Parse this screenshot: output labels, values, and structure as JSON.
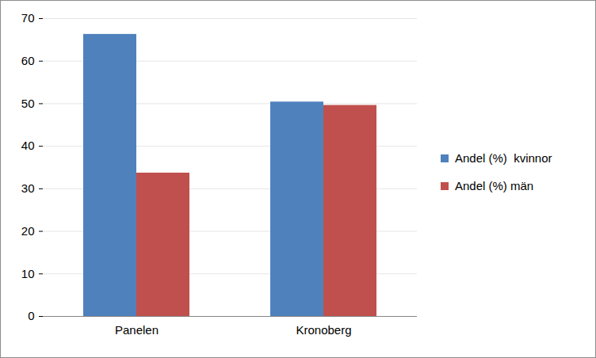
{
  "chart_data": {
    "type": "bar",
    "categories": [
      "Panelen",
      "Kronoberg"
    ],
    "series": [
      {
        "name": "Andel (%)  kvinnor",
        "color": "#4f81bd",
        "values": [
          66.3,
          50.4
        ]
      },
      {
        "name": "Andel (%) män",
        "color": "#c0504d",
        "values": [
          33.7,
          49.6
        ]
      }
    ],
    "ylim": [
      0,
      70
    ],
    "yticks": [
      0,
      10,
      20,
      30,
      40,
      50,
      60,
      70
    ],
    "grid": true,
    "legend": "right"
  }
}
